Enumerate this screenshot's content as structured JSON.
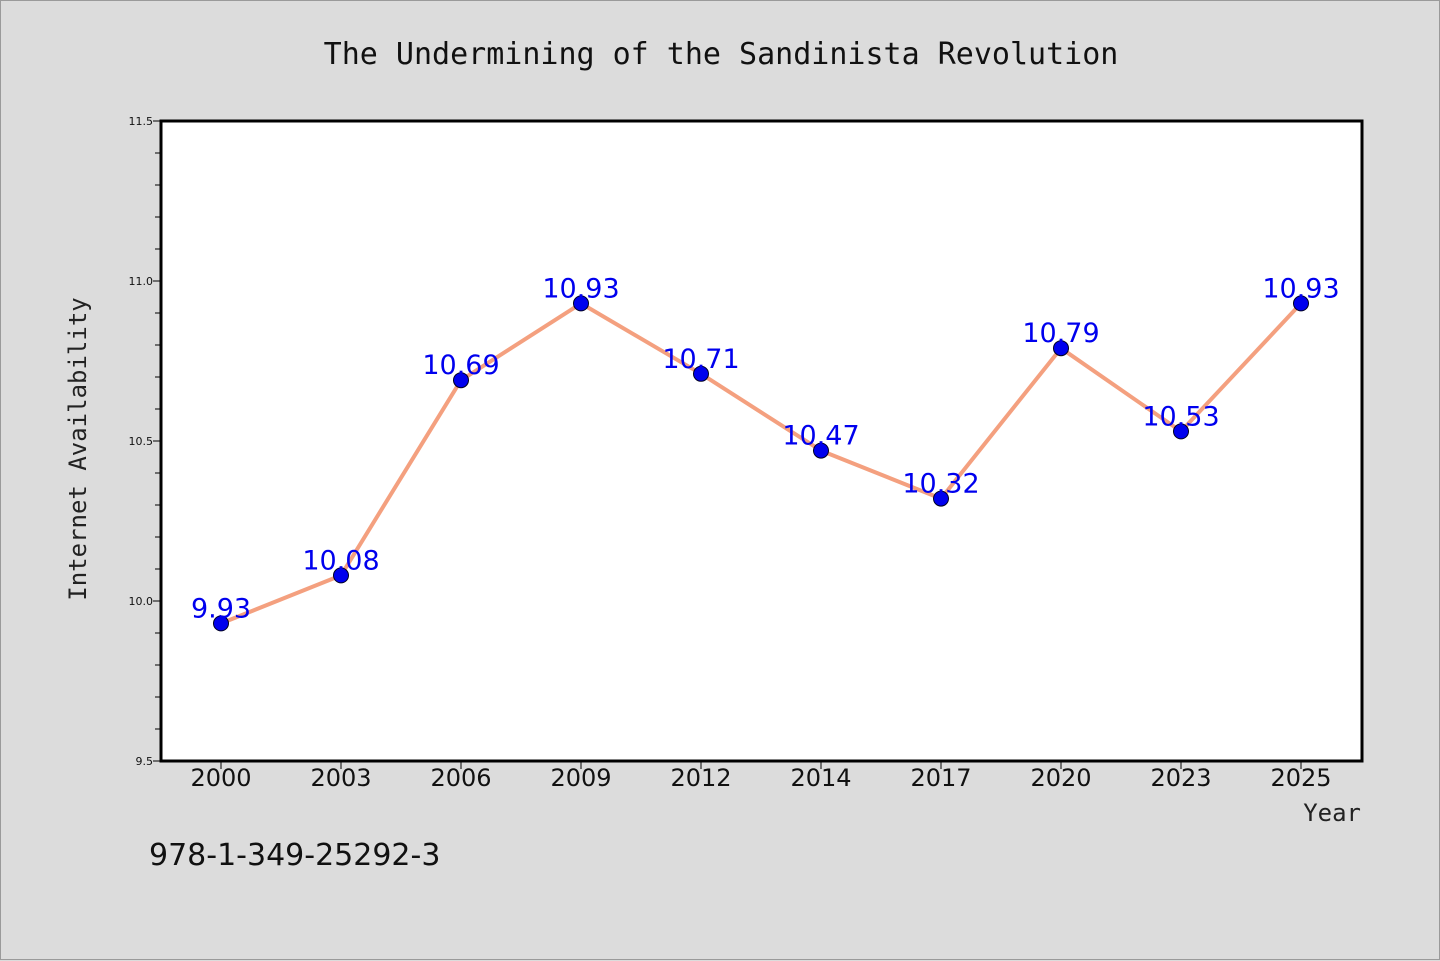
{
  "chart_data": {
    "type": "line",
    "title": "The Undermining of the Sandinista Revolution",
    "xlabel": "Year",
    "ylabel": "Internet Availability",
    "categories": [
      "2000",
      "2003",
      "2006",
      "2009",
      "2012",
      "2014",
      "2017",
      "2020",
      "2023",
      "2025"
    ],
    "values": [
      9.93,
      10.08,
      10.69,
      10.93,
      10.71,
      10.47,
      10.32,
      10.79,
      10.53,
      10.93
    ],
    "data_labels": [
      "9.93",
      "10.08",
      "10.69",
      "10.93",
      "10.71",
      "10.47",
      "10.32",
      "10.79",
      "10.53",
      "10.93"
    ],
    "ylim": [
      9.5,
      11.5
    ],
    "yticks": [
      "9.5",
      "10.0",
      "10.5",
      "11.0",
      "11.5"
    ],
    "grid": false,
    "line_color": "#f4a07f",
    "marker_color": "#0000ee",
    "label_color": "#0000ee"
  },
  "footnote": "978-1-349-25292-3"
}
